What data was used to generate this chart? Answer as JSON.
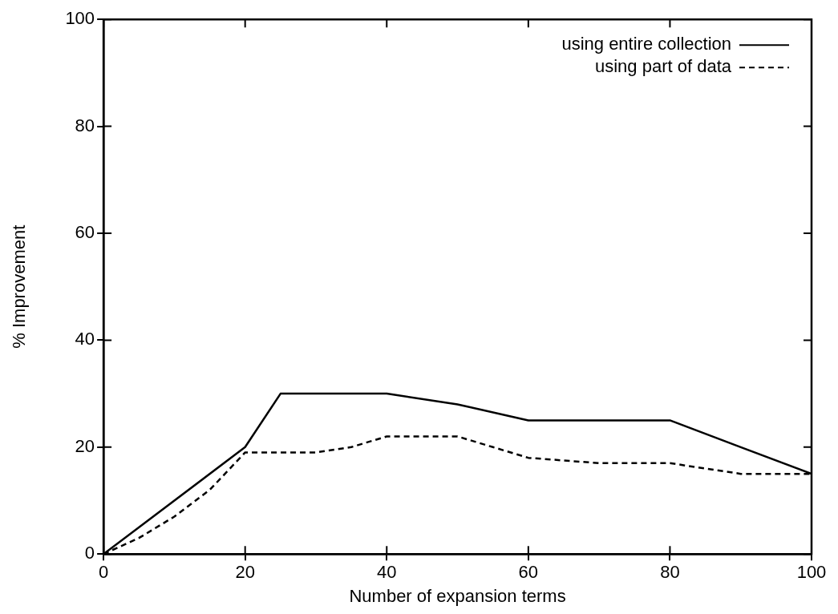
{
  "chart_data": {
    "type": "line",
    "xlabel": "Number of expansion terms",
    "ylabel": "% Improvement",
    "xlim": [
      0,
      100
    ],
    "xticks": [
      0,
      20,
      40,
      60,
      80,
      100
    ],
    "ylim": [
      0,
      100
    ],
    "yticks": [
      0,
      20,
      40,
      60,
      80,
      100
    ],
    "grid": false,
    "legend": "top right",
    "marker": "none",
    "series": [
      {
        "name": "using entire collection",
        "color": "#000000",
        "line_style": "solid",
        "x": [
          0,
          20,
          25,
          40,
          50,
          60,
          80,
          90,
          100
        ],
        "values": [
          0,
          20,
          30,
          30,
          28,
          25,
          25,
          20,
          15
        ]
      },
      {
        "name": "using part of data",
        "color": "#000000",
        "line_style": "dashed",
        "x": [
          0,
          5,
          10,
          15,
          20,
          30,
          35,
          40,
          50,
          55,
          60,
          70,
          80,
          90,
          100
        ],
        "values": [
          0,
          3,
          7,
          12,
          19,
          19,
          20,
          22,
          22,
          20,
          18,
          17,
          17,
          15,
          15
        ]
      }
    ]
  }
}
